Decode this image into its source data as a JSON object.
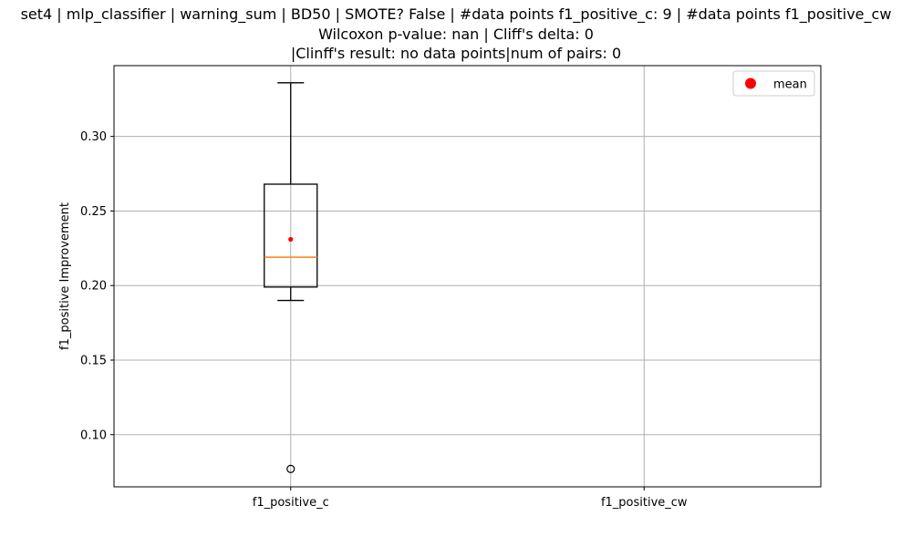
{
  "chart_data": {
    "type": "box",
    "title_lines": [
      "set4 | mlp_classifier | warning_sum | BD50 | SMOTE? False | #data points f1_positive_c: 9 | #data points f1_positive_cw",
      "Wilcoxon p-value: nan | Cliff's delta: 0",
      "|Clinff's result: no data points|num of pairs: 0"
    ],
    "xlabel": "",
    "ylabel": "f1_positive Improvement",
    "categories": [
      "f1_positive_c",
      "f1_positive_cw"
    ],
    "ylim": [
      0.065,
      0.3475
    ],
    "yticks": [
      0.1,
      0.15,
      0.2,
      0.25,
      0.3
    ],
    "ytick_labels": [
      "0.10",
      "0.15",
      "0.20",
      "0.25",
      "0.30"
    ],
    "grid": true,
    "legend": {
      "placement": "top-right",
      "entries": [
        {
          "label": "mean",
          "marker": "red-dot"
        }
      ]
    },
    "boxes": [
      {
        "category": "f1_positive_c",
        "whisker_low": 0.19,
        "q1": 0.199,
        "median": 0.219,
        "q3": 0.268,
        "whisker_high": 0.336,
        "mean": 0.231,
        "outliers": [
          0.077
        ]
      },
      {
        "category": "f1_positive_cw",
        "whisker_low": null,
        "q1": null,
        "median": null,
        "q3": null,
        "whisker_high": null,
        "mean": null,
        "outliers": []
      }
    ],
    "colors": {
      "box": "#000000",
      "median": "#ff7f0e",
      "mean": "#ff0000",
      "grid": "#b0b0b0"
    }
  }
}
